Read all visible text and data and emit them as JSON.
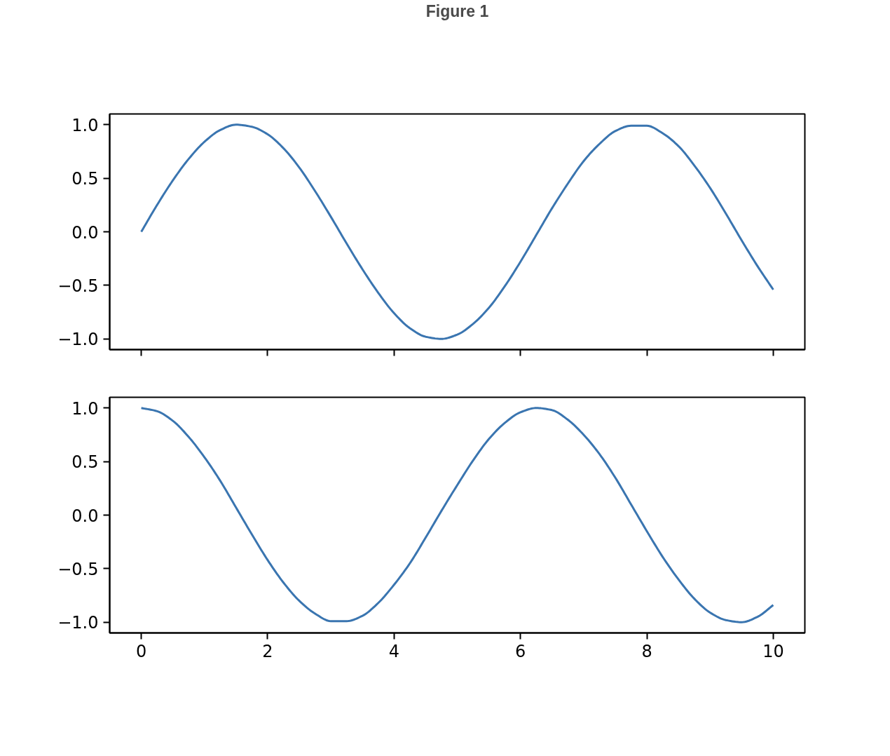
{
  "chart_data": [
    {
      "type": "line",
      "title": "Figure 1",
      "x": [
        0,
        0.25,
        0.5,
        0.75,
        1,
        1.25,
        1.5,
        1.75,
        2,
        2.25,
        2.5,
        2.75,
        3,
        3.25,
        3.5,
        3.75,
        4,
        4.25,
        4.5,
        4.75,
        5,
        5.25,
        5.5,
        5.75,
        6,
        6.25,
        6.5,
        6.75,
        7,
        7.25,
        7.5,
        7.75,
        8,
        8.25,
        8.5,
        8.75,
        9,
        9.25,
        9.5,
        9.75,
        10
      ],
      "series": [
        {
          "color": "#3a75b0",
          "values": [
            0.0,
            0.25,
            0.48,
            0.68,
            0.84,
            0.95,
            1.0,
            0.98,
            0.91,
            0.78,
            0.6,
            0.38,
            0.14,
            -0.11,
            -0.35,
            -0.57,
            -0.76,
            -0.9,
            -0.98,
            -1.0,
            -0.96,
            -0.86,
            -0.71,
            -0.51,
            -0.28,
            -0.03,
            0.22,
            0.45,
            0.66,
            0.82,
            0.94,
            0.99,
            0.99,
            0.92,
            0.8,
            0.62,
            0.41,
            0.17,
            -0.08,
            -0.32,
            -0.54
          ]
        }
      ],
      "xlim": [
        -0.5,
        10.5
      ],
      "ylim": [
        -1.1,
        1.1
      ],
      "xticks": [
        0,
        2,
        4,
        6,
        8,
        10
      ],
      "yticks": [
        {
          "value": -1,
          "label": "−1.0"
        },
        {
          "value": -0.5,
          "label": "−0.5"
        },
        {
          "value": 0,
          "label": "0.0"
        },
        {
          "value": 0.5,
          "label": "0.5"
        },
        {
          "value": 1,
          "label": "1.0"
        }
      ],
      "tick_labels": "y"
    },
    {
      "type": "line",
      "x": [
        0,
        0.25,
        0.5,
        0.75,
        1,
        1.25,
        1.5,
        1.75,
        2,
        2.25,
        2.5,
        2.75,
        3,
        3.25,
        3.5,
        3.75,
        4,
        4.25,
        4.5,
        4.75,
        5,
        5.25,
        5.5,
        5.75,
        6,
        6.25,
        6.5,
        6.75,
        7,
        7.25,
        7.5,
        7.75,
        8,
        8.25,
        8.5,
        8.75,
        9,
        9.25,
        9.5,
        9.75,
        10
      ],
      "series": [
        {
          "color": "#3a75b0",
          "values": [
            1.0,
            0.97,
            0.88,
            0.73,
            0.54,
            0.32,
            0.07,
            -0.18,
            -0.42,
            -0.63,
            -0.8,
            -0.92,
            -0.99,
            -0.99,
            -0.94,
            -0.82,
            -0.65,
            -0.45,
            -0.21,
            0.04,
            0.28,
            0.51,
            0.71,
            0.86,
            0.96,
            1.0,
            0.98,
            0.89,
            0.75,
            0.57,
            0.35,
            0.1,
            -0.15,
            -0.39,
            -0.6,
            -0.78,
            -0.91,
            -0.98,
            -1.0,
            -0.95,
            -0.84
          ]
        }
      ],
      "xlim": [
        -0.5,
        10.5
      ],
      "ylim": [
        -1.1,
        1.1
      ],
      "xticks": [
        0,
        2,
        4,
        6,
        8,
        10
      ],
      "yticks": [
        {
          "value": -1,
          "label": "−1.0"
        },
        {
          "value": -0.5,
          "label": "−0.5"
        },
        {
          "value": 0,
          "label": "0.0"
        },
        {
          "value": 0.5,
          "label": "0.5"
        },
        {
          "value": 1,
          "label": "1.0"
        }
      ]
    }
  ]
}
